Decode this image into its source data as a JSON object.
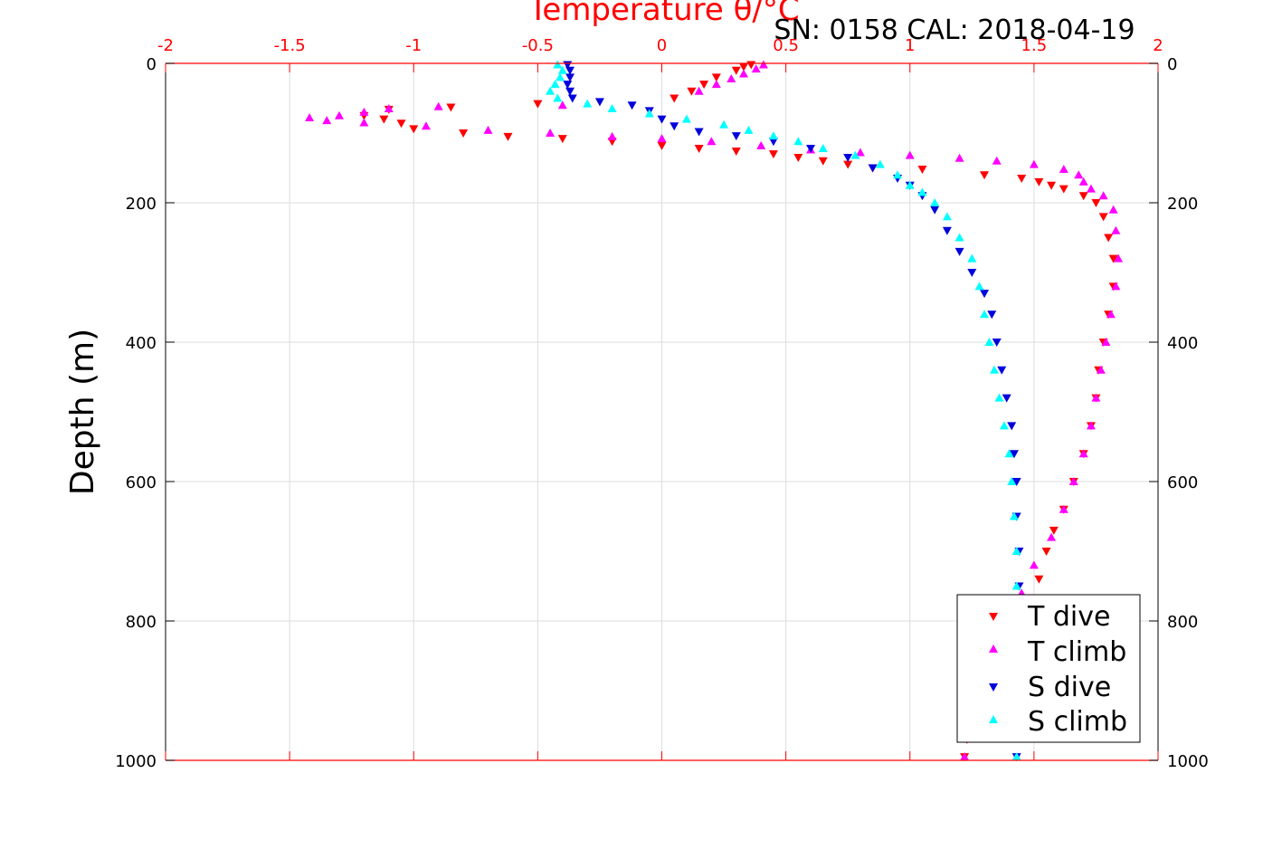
{
  "chart_data": {
    "type": "scatter",
    "title": "Temperature θ/°C",
    "subtitle": "SN: 0158  CAL: 2018-04-19",
    "ylabel": "Depth (m)",
    "xlim": [
      -2,
      2
    ],
    "ylim": [
      0,
      1000
    ],
    "y_reversed": true,
    "x_ticks": [
      "-2",
      "-1.5",
      "-1",
      "-0.5",
      "0",
      "0.5",
      "1",
      "1.5",
      "2"
    ],
    "y_ticks": [
      "0",
      "200",
      "400",
      "600",
      "800",
      "1000"
    ],
    "grid": true,
    "legend_position": "bottom-right",
    "colors": {
      "t_dive": "#ff0000",
      "t_climb": "#ff00ff",
      "s_dive": "#0000dd",
      "s_climb": "#00ffff",
      "x_axis": "#ff0000",
      "grid": "#dddddd"
    },
    "series": [
      {
        "name": "T dive",
        "marker": "triangle-down",
        "color": "#ff0000",
        "points": [
          [
            0.36,
            2
          ],
          [
            0.33,
            5
          ],
          [
            0.3,
            10
          ],
          [
            0.22,
            20
          ],
          [
            0.17,
            30
          ],
          [
            0.12,
            40
          ],
          [
            0.05,
            50
          ],
          [
            -0.5,
            58
          ],
          [
            -0.85,
            63
          ],
          [
            -1.1,
            66
          ],
          [
            -1.2,
            75
          ],
          [
            -1.12,
            80
          ],
          [
            -1.05,
            86
          ],
          [
            -1.0,
            94
          ],
          [
            -0.8,
            100
          ],
          [
            -0.62,
            105
          ],
          [
            -0.4,
            108
          ],
          [
            -0.2,
            112
          ],
          [
            0.0,
            118
          ],
          [
            0.15,
            122
          ],
          [
            0.3,
            126
          ],
          [
            0.45,
            130
          ],
          [
            0.55,
            135
          ],
          [
            0.65,
            140
          ],
          [
            0.75,
            145
          ],
          [
            0.85,
            150
          ],
          [
            1.05,
            152
          ],
          [
            1.3,
            160
          ],
          [
            1.45,
            165
          ],
          [
            1.52,
            170
          ],
          [
            1.57,
            175
          ],
          [
            1.62,
            180
          ],
          [
            1.7,
            190
          ],
          [
            1.75,
            200
          ],
          [
            1.78,
            220
          ],
          [
            1.8,
            250
          ],
          [
            1.82,
            280
          ],
          [
            1.82,
            320
          ],
          [
            1.8,
            360
          ],
          [
            1.78,
            400
          ],
          [
            1.76,
            440
          ],
          [
            1.75,
            480
          ],
          [
            1.73,
            520
          ],
          [
            1.7,
            560
          ],
          [
            1.66,
            600
          ],
          [
            1.62,
            640
          ],
          [
            1.58,
            670
          ],
          [
            1.55,
            700
          ],
          [
            1.52,
            740
          ],
          [
            1.49,
            780
          ],
          [
            1.4,
            820
          ],
          [
            1.3,
            870
          ],
          [
            1.25,
            920
          ],
          [
            1.23,
            970
          ],
          [
            1.22,
            995
          ]
        ]
      },
      {
        "name": "T climb",
        "marker": "triangle-up",
        "color": "#ff00ff",
        "points": [
          [
            0.41,
            2
          ],
          [
            0.38,
            8
          ],
          [
            0.33,
            15
          ],
          [
            0.28,
            22
          ],
          [
            0.22,
            30
          ],
          [
            0.15,
            40
          ],
          [
            -0.4,
            60
          ],
          [
            -0.9,
            62
          ],
          [
            -1.1,
            65
          ],
          [
            -1.2,
            70
          ],
          [
            -1.3,
            75
          ],
          [
            -1.42,
            78
          ],
          [
            -1.35,
            82
          ],
          [
            -1.2,
            85
          ],
          [
            -0.95,
            90
          ],
          [
            -0.7,
            96
          ],
          [
            -0.45,
            100
          ],
          [
            -0.2,
            105
          ],
          [
            0.0,
            108
          ],
          [
            0.2,
            112
          ],
          [
            0.4,
            118
          ],
          [
            0.6,
            124
          ],
          [
            0.8,
            128
          ],
          [
            1.0,
            132
          ],
          [
            1.2,
            136
          ],
          [
            1.35,
            140
          ],
          [
            1.5,
            145
          ],
          [
            1.62,
            152
          ],
          [
            1.68,
            160
          ],
          [
            1.7,
            170
          ],
          [
            1.73,
            180
          ],
          [
            1.78,
            190
          ],
          [
            1.82,
            210
          ],
          [
            1.83,
            240
          ],
          [
            1.84,
            280
          ],
          [
            1.83,
            320
          ],
          [
            1.81,
            360
          ],
          [
            1.79,
            400
          ],
          [
            1.77,
            440
          ],
          [
            1.75,
            480
          ],
          [
            1.73,
            520
          ],
          [
            1.7,
            560
          ],
          [
            1.66,
            600
          ],
          [
            1.62,
            640
          ],
          [
            1.57,
            680
          ],
          [
            1.5,
            720
          ],
          [
            1.45,
            760
          ],
          [
            1.38,
            800
          ],
          [
            1.3,
            850
          ],
          [
            1.25,
            900
          ],
          [
            1.23,
            950
          ],
          [
            1.22,
            995
          ]
        ]
      },
      {
        "name": "S dive",
        "marker": "triangle-down",
        "color": "#0000dd",
        "points": [
          [
            -0.38,
            2
          ],
          [
            -0.37,
            10
          ],
          [
            -0.37,
            20
          ],
          [
            -0.38,
            30
          ],
          [
            -0.37,
            40
          ],
          [
            -0.36,
            50
          ],
          [
            -0.25,
            55
          ],
          [
            -0.12,
            60
          ],
          [
            -0.05,
            68
          ],
          [
            0.0,
            80
          ],
          [
            0.05,
            90
          ],
          [
            0.15,
            98
          ],
          [
            0.3,
            104
          ],
          [
            0.45,
            112
          ],
          [
            0.6,
            122
          ],
          [
            0.75,
            135
          ],
          [
            0.85,
            150
          ],
          [
            0.95,
            165
          ],
          [
            1.0,
            175
          ],
          [
            1.05,
            190
          ],
          [
            1.1,
            210
          ],
          [
            1.15,
            240
          ],
          [
            1.2,
            270
          ],
          [
            1.25,
            300
          ],
          [
            1.3,
            330
          ],
          [
            1.33,
            360
          ],
          [
            1.35,
            400
          ],
          [
            1.37,
            440
          ],
          [
            1.39,
            480
          ],
          [
            1.41,
            520
          ],
          [
            1.42,
            560
          ],
          [
            1.43,
            600
          ],
          [
            1.43,
            650
          ],
          [
            1.44,
            700
          ],
          [
            1.44,
            750
          ],
          [
            1.44,
            800
          ],
          [
            1.44,
            850
          ],
          [
            1.44,
            900
          ],
          [
            1.43,
            950
          ],
          [
            1.43,
            995
          ]
        ]
      },
      {
        "name": "S climb",
        "marker": "triangle-up",
        "color": "#00ffff",
        "points": [
          [
            -0.42,
            2
          ],
          [
            -0.4,
            10
          ],
          [
            -0.41,
            20
          ],
          [
            -0.43,
            30
          ],
          [
            -0.45,
            40
          ],
          [
            -0.42,
            50
          ],
          [
            -0.3,
            58
          ],
          [
            -0.2,
            65
          ],
          [
            -0.05,
            72
          ],
          [
            0.1,
            80
          ],
          [
            0.25,
            88
          ],
          [
            0.35,
            96
          ],
          [
            0.45,
            104
          ],
          [
            0.55,
            112
          ],
          [
            0.65,
            122
          ],
          [
            0.78,
            132
          ],
          [
            0.88,
            145
          ],
          [
            0.95,
            160
          ],
          [
            1.0,
            175
          ],
          [
            1.05,
            185
          ],
          [
            1.1,
            200
          ],
          [
            1.15,
            220
          ],
          [
            1.2,
            250
          ],
          [
            1.25,
            280
          ],
          [
            1.28,
            320
          ],
          [
            1.3,
            360
          ],
          [
            1.32,
            400
          ],
          [
            1.34,
            440
          ],
          [
            1.36,
            480
          ],
          [
            1.38,
            520
          ],
          [
            1.4,
            560
          ],
          [
            1.41,
            600
          ],
          [
            1.42,
            650
          ],
          [
            1.43,
            700
          ],
          [
            1.43,
            750
          ],
          [
            1.43,
            800
          ],
          [
            1.43,
            850
          ],
          [
            1.43,
            900
          ],
          [
            1.43,
            950
          ],
          [
            1.43,
            995
          ]
        ]
      }
    ]
  }
}
